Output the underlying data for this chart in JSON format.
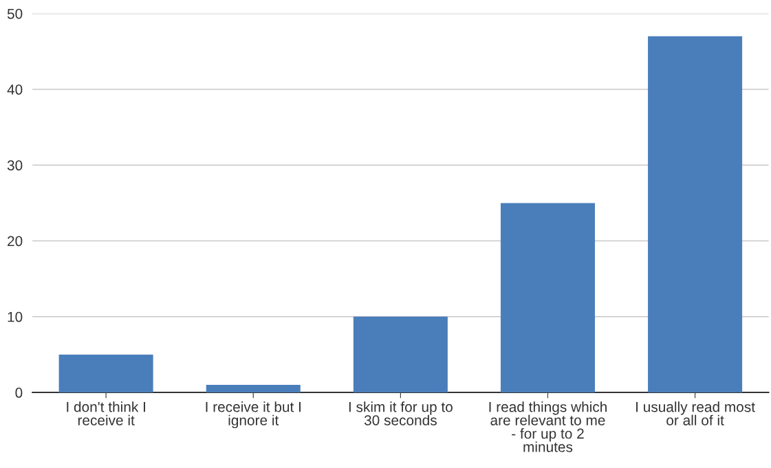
{
  "chart_data": {
    "type": "bar",
    "categories": [
      "I don't think I receive it",
      "I receive it but I ignore it",
      "I skim it for up to 30 seconds",
      "I read things which are relevant to me - for up to 2 minutes",
      "I usually read most or all of it"
    ],
    "values": [
      5,
      1,
      10,
      25,
      47
    ],
    "color": "#4a7ebb",
    "ylim": [
      0,
      50
    ],
    "yticks": [
      0,
      10,
      20,
      30,
      40,
      50
    ],
    "grid": "y",
    "legend": false
  }
}
